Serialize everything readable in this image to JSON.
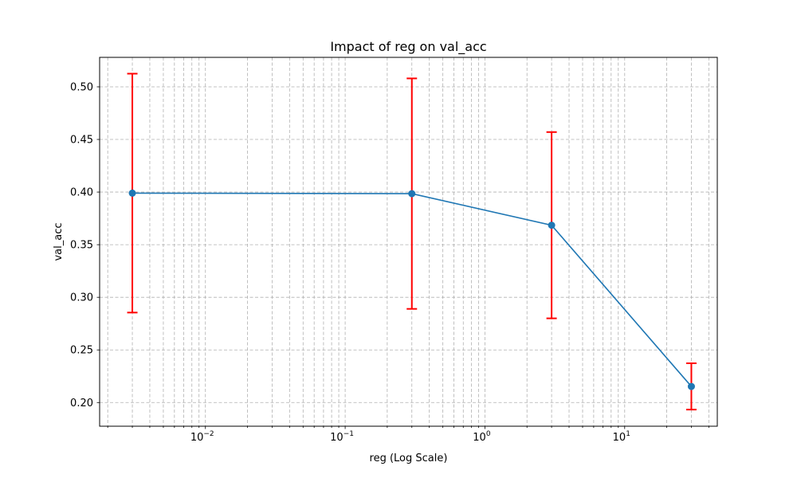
{
  "chart_data": {
    "type": "line",
    "title": "Impact of reg on val_acc",
    "xlabel": "reg (Log Scale)",
    "ylabel": "val_acc",
    "x_scale": "log",
    "xlim": [
      0.00175,
      46
    ],
    "ylim": [
      0.1775,
      0.528
    ],
    "x_ticks": [
      {
        "value": 0.01,
        "base": "10",
        "exp": "−2"
      },
      {
        "value": 0.1,
        "base": "10",
        "exp": "−1"
      },
      {
        "value": 1,
        "base": "10",
        "exp": "0"
      },
      {
        "value": 10,
        "base": "10",
        "exp": "1"
      }
    ],
    "y_ticks": [
      "0.20",
      "0.25",
      "0.30",
      "0.35",
      "0.40",
      "0.45",
      "0.50"
    ],
    "grid": "major and minor, dashed",
    "series": [
      {
        "x": [
          0.003,
          0.3,
          3,
          30
        ],
        "y": [
          0.399,
          0.3985,
          0.3685,
          0.2153
        ],
        "error": [
          0.1135,
          0.1095,
          0.0885,
          0.022
        ]
      }
    ],
    "colors": {
      "line": "#1f77b4",
      "error_bars": "#ff0000",
      "grid": "#b0b0b0",
      "axes": "#000000"
    }
  }
}
